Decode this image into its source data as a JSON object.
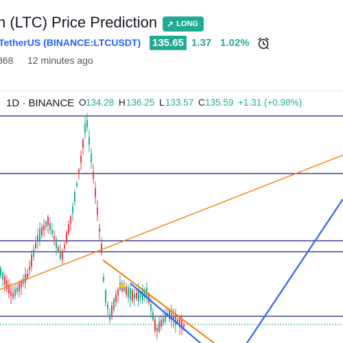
{
  "header": {
    "title": "n (LTC) Price Prediction",
    "badge_label": "LONG",
    "badge_icon": "arrow-up-right-icon"
  },
  "symbol": {
    "name": "TetherUS (BINANCE:LTCUSDT)",
    "price": "135.65",
    "change_abs": "1.37",
    "change_pct": "1.02%",
    "alarm_icon": "alarm-clock-icon"
  },
  "meta": {
    "views": "868",
    "time": "12 minutes ago"
  },
  "ohlc": {
    "interval": "1D · BINANCE",
    "o_label": "O",
    "o_value": "134.28",
    "h_label": "H",
    "h_value": "136.25",
    "l_label": "L",
    "l_value": "133.57",
    "c_label": "C",
    "c_value": "135.59",
    "change": "+1.31 (+0.98%)"
  },
  "colors": {
    "up": "#22ab94",
    "down": "#f23645",
    "horizontal_lines": "#1a1a7a",
    "orange_lines": "#f57c00",
    "blue_lines": "#2962ff",
    "dot": "#f5c518"
  },
  "chart_data": {
    "type": "candlestick",
    "annotations": [
      "horizontal-levels",
      "orange-trendlines",
      "blue-channel",
      "yellow-dot"
    ]
  }
}
